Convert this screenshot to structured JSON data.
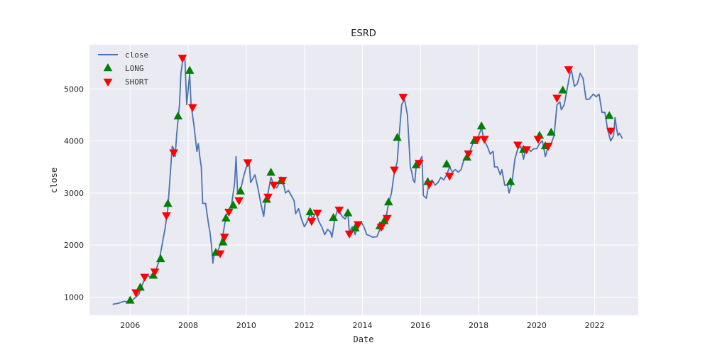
{
  "chart_data": {
    "type": "line",
    "title": "ESRD",
    "xlabel": "Date",
    "ylabel": "close",
    "xlim": [
      2004.6,
      2023.5
    ],
    "ylim": [
      650,
      5850
    ],
    "x_ticks": [
      2006,
      2008,
      2010,
      2012,
      2014,
      2016,
      2018,
      2020,
      2022
    ],
    "y_ticks": [
      1000,
      2000,
      3000,
      4000,
      5000
    ],
    "grid": true,
    "legend": {
      "position": "top-left",
      "entries": [
        {
          "label": "close",
          "kind": "line",
          "color": "#4c72b0"
        },
        {
          "label": "LONG",
          "kind": "triangle-up",
          "color": "#008000"
        },
        {
          "label": "SHORT",
          "kind": "triangle-down",
          "color": "#ff0000"
        }
      ]
    },
    "colors": {
      "close": "#4c72b0",
      "long": "#008000",
      "short": "#ff0000",
      "plot_bg": "#eaeaf2",
      "grid": "#ffffff"
    },
    "series": [
      {
        "name": "close",
        "points": [
          [
            2005.4,
            860
          ],
          [
            2005.6,
            880
          ],
          [
            2005.8,
            920
          ],
          [
            2006.0,
            900
          ],
          [
            2006.1,
            950
          ],
          [
            2006.3,
            1050
          ],
          [
            2006.4,
            1200
          ],
          [
            2006.5,
            1350
          ],
          [
            2006.6,
            1420
          ],
          [
            2006.7,
            1380
          ],
          [
            2006.85,
            1450
          ],
          [
            2007.0,
            1700
          ],
          [
            2007.1,
            2000
          ],
          [
            2007.2,
            2300
          ],
          [
            2007.3,
            2700
          ],
          [
            2007.4,
            3500
          ],
          [
            2007.45,
            3900
          ],
          [
            2007.5,
            3850
          ],
          [
            2007.55,
            3700
          ],
          [
            2007.6,
            4100
          ],
          [
            2007.65,
            4400
          ],
          [
            2007.7,
            4700
          ],
          [
            2007.75,
            5300
          ],
          [
            2007.8,
            5500
          ],
          [
            2007.88,
            5650
          ],
          [
            2007.95,
            4700
          ],
          [
            2008.0,
            5000
          ],
          [
            2008.05,
            5300
          ],
          [
            2008.1,
            4700
          ],
          [
            2008.2,
            4300
          ],
          [
            2008.3,
            3800
          ],
          [
            2008.35,
            3950
          ],
          [
            2008.4,
            3700
          ],
          [
            2008.45,
            3500
          ],
          [
            2008.5,
            2800
          ],
          [
            2008.6,
            2800
          ],
          [
            2008.7,
            2400
          ],
          [
            2008.75,
            2250
          ],
          [
            2008.8,
            2000
          ],
          [
            2008.85,
            1650
          ],
          [
            2008.9,
            1850
          ],
          [
            2009.0,
            1850
          ],
          [
            2009.1,
            2000
          ],
          [
            2009.2,
            2200
          ],
          [
            2009.3,
            2550
          ],
          [
            2009.4,
            2650
          ],
          [
            2009.5,
            2800
          ],
          [
            2009.6,
            3200
          ],
          [
            2009.65,
            3700
          ],
          [
            2009.7,
            3000
          ],
          [
            2009.8,
            3050
          ],
          [
            2009.9,
            3300
          ],
          [
            2010.0,
            3500
          ],
          [
            2010.1,
            3600
          ],
          [
            2010.15,
            3200
          ],
          [
            2010.3,
            3350
          ],
          [
            2010.4,
            3100
          ],
          [
            2010.5,
            2800
          ],
          [
            2010.6,
            2550
          ],
          [
            2010.65,
            2800
          ],
          [
            2010.75,
            3000
          ],
          [
            2010.85,
            3300
          ],
          [
            2010.95,
            3150
          ],
          [
            2011.05,
            3100
          ],
          [
            2011.15,
            3200
          ],
          [
            2011.25,
            3250
          ],
          [
            2011.35,
            3000
          ],
          [
            2011.45,
            3050
          ],
          [
            2011.55,
            2950
          ],
          [
            2011.65,
            2850
          ],
          [
            2011.7,
            2600
          ],
          [
            2011.8,
            2700
          ],
          [
            2011.9,
            2500
          ],
          [
            2012.0,
            2350
          ],
          [
            2012.1,
            2450
          ],
          [
            2012.2,
            2600
          ],
          [
            2012.3,
            2500
          ],
          [
            2012.4,
            2650
          ],
          [
            2012.5,
            2450
          ],
          [
            2012.6,
            2350
          ],
          [
            2012.7,
            2200
          ],
          [
            2012.8,
            2300
          ],
          [
            2012.9,
            2250
          ],
          [
            2012.95,
            2150
          ],
          [
            2013.05,
            2500
          ],
          [
            2013.15,
            2700
          ],
          [
            2013.3,
            2550
          ],
          [
            2013.4,
            2500
          ],
          [
            2013.5,
            2600
          ],
          [
            2013.55,
            2250
          ],
          [
            2013.65,
            2350
          ],
          [
            2013.75,
            2200
          ],
          [
            2013.85,
            2400
          ],
          [
            2013.95,
            2450
          ],
          [
            2014.05,
            2350
          ],
          [
            2014.15,
            2200
          ],
          [
            2014.25,
            2180
          ],
          [
            2014.35,
            2150
          ],
          [
            2014.5,
            2160
          ],
          [
            2014.6,
            2300
          ],
          [
            2014.7,
            2400
          ],
          [
            2014.8,
            2500
          ],
          [
            2014.9,
            2800
          ],
          [
            2015.0,
            3000
          ],
          [
            2015.1,
            3400
          ],
          [
            2015.2,
            3600
          ],
          [
            2015.25,
            4000
          ],
          [
            2015.35,
            4700
          ],
          [
            2015.45,
            4800
          ],
          [
            2015.55,
            4500
          ],
          [
            2015.6,
            4000
          ],
          [
            2015.65,
            3500
          ],
          [
            2015.7,
            3400
          ],
          [
            2015.75,
            3250
          ],
          [
            2015.8,
            3200
          ],
          [
            2015.85,
            3500
          ],
          [
            2015.95,
            3600
          ],
          [
            2016.05,
            3700
          ],
          [
            2016.1,
            2950
          ],
          [
            2016.2,
            2900
          ],
          [
            2016.3,
            3200
          ],
          [
            2016.4,
            3250
          ],
          [
            2016.5,
            3150
          ],
          [
            2016.6,
            3200
          ],
          [
            2016.7,
            3300
          ],
          [
            2016.8,
            3250
          ],
          [
            2016.9,
            3350
          ],
          [
            2017.0,
            3500
          ],
          [
            2017.1,
            3400
          ],
          [
            2017.2,
            3450
          ],
          [
            2017.3,
            3400
          ],
          [
            2017.4,
            3450
          ],
          [
            2017.5,
            3650
          ],
          [
            2017.6,
            3700
          ],
          [
            2017.7,
            3800
          ],
          [
            2017.8,
            3950
          ],
          [
            2017.9,
            4000
          ],
          [
            2018.0,
            4100
          ],
          [
            2018.1,
            4250
          ],
          [
            2018.2,
            4000
          ],
          [
            2018.3,
            3900
          ],
          [
            2018.4,
            3750
          ],
          [
            2018.5,
            3800
          ],
          [
            2018.55,
            3500
          ],
          [
            2018.65,
            3500
          ],
          [
            2018.75,
            3350
          ],
          [
            2018.8,
            3450
          ],
          [
            2018.9,
            3150
          ],
          [
            2019.0,
            3150
          ],
          [
            2019.05,
            3000
          ],
          [
            2019.15,
            3200
          ],
          [
            2019.25,
            3650
          ],
          [
            2019.35,
            3850
          ],
          [
            2019.45,
            3900
          ],
          [
            2019.55,
            3650
          ],
          [
            2019.6,
            3800
          ],
          [
            2019.7,
            3850
          ],
          [
            2019.8,
            3800
          ],
          [
            2019.9,
            3850
          ],
          [
            2020.0,
            3850
          ],
          [
            2020.1,
            3950
          ],
          [
            2020.2,
            4000
          ],
          [
            2020.3,
            3700
          ],
          [
            2020.4,
            3900
          ],
          [
            2020.5,
            3950
          ],
          [
            2020.6,
            4100
          ],
          [
            2020.7,
            4700
          ],
          [
            2020.8,
            4750
          ],
          [
            2020.85,
            4600
          ],
          [
            2020.95,
            4700
          ],
          [
            2021.05,
            5000
          ],
          [
            2021.15,
            5300
          ],
          [
            2021.2,
            5350
          ],
          [
            2021.3,
            5050
          ],
          [
            2021.4,
            5100
          ],
          [
            2021.5,
            5300
          ],
          [
            2021.6,
            5200
          ],
          [
            2021.7,
            4800
          ],
          [
            2021.8,
            4800
          ],
          [
            2021.95,
            4900
          ],
          [
            2022.05,
            4850
          ],
          [
            2022.15,
            4900
          ],
          [
            2022.25,
            4550
          ],
          [
            2022.35,
            4550
          ],
          [
            2022.45,
            4200
          ],
          [
            2022.55,
            4000
          ],
          [
            2022.65,
            4100
          ],
          [
            2022.7,
            4450
          ],
          [
            2022.75,
            4250
          ],
          [
            2022.8,
            4100
          ],
          [
            2022.85,
            4150
          ],
          [
            2022.95,
            4050
          ]
        ]
      },
      {
        "name": "LONG",
        "points": [
          [
            2006.0,
            930
          ],
          [
            2006.35,
            1180
          ],
          [
            2006.8,
            1410
          ],
          [
            2007.05,
            1730
          ],
          [
            2007.3,
            2790
          ],
          [
            2007.65,
            4470
          ],
          [
            2008.05,
            5350
          ],
          [
            2008.95,
            1850
          ],
          [
            2009.2,
            2050
          ],
          [
            2009.3,
            2510
          ],
          [
            2009.55,
            2760
          ],
          [
            2009.8,
            3030
          ],
          [
            2010.7,
            2870
          ],
          [
            2010.85,
            3390
          ],
          [
            2011.2,
            3230
          ],
          [
            2012.2,
            2630
          ],
          [
            2013.0,
            2520
          ],
          [
            2013.5,
            2610
          ],
          [
            2013.75,
            2320
          ],
          [
            2014.6,
            2360
          ],
          [
            2014.75,
            2460
          ],
          [
            2014.9,
            2820
          ],
          [
            2015.2,
            4060
          ],
          [
            2015.85,
            3530
          ],
          [
            2016.25,
            3210
          ],
          [
            2016.9,
            3550
          ],
          [
            2017.6,
            3680
          ],
          [
            2017.85,
            4000
          ],
          [
            2018.1,
            4280
          ],
          [
            2019.1,
            3210
          ],
          [
            2019.55,
            3830
          ],
          [
            2020.1,
            4100
          ],
          [
            2020.3,
            3900
          ],
          [
            2020.5,
            4160
          ],
          [
            2020.9,
            4970
          ],
          [
            2022.5,
            4480
          ]
        ]
      },
      {
        "name": "SHORT",
        "points": [
          [
            2006.2,
            1090
          ],
          [
            2006.5,
            1390
          ],
          [
            2006.85,
            1490
          ],
          [
            2007.25,
            2570
          ],
          [
            2007.5,
            3780
          ],
          [
            2007.8,
            5600
          ],
          [
            2008.15,
            4650
          ],
          [
            2009.1,
            1840
          ],
          [
            2009.25,
            2160
          ],
          [
            2009.4,
            2640
          ],
          [
            2009.75,
            2860
          ],
          [
            2010.05,
            3590
          ],
          [
            2010.75,
            2930
          ],
          [
            2010.95,
            3160
          ],
          [
            2011.25,
            3250
          ],
          [
            2012.25,
            2460
          ],
          [
            2012.45,
            2620
          ],
          [
            2013.2,
            2680
          ],
          [
            2013.55,
            2220
          ],
          [
            2013.85,
            2400
          ],
          [
            2014.65,
            2350
          ],
          [
            2014.85,
            2520
          ],
          [
            2015.1,
            3450
          ],
          [
            2015.4,
            4850
          ],
          [
            2015.95,
            3580
          ],
          [
            2016.3,
            3170
          ],
          [
            2017.0,
            3330
          ],
          [
            2017.65,
            3760
          ],
          [
            2017.95,
            4030
          ],
          [
            2018.2,
            4040
          ],
          [
            2019.35,
            3930
          ],
          [
            2019.65,
            3840
          ],
          [
            2020.05,
            4040
          ],
          [
            2020.4,
            3910
          ],
          [
            2020.7,
            4830
          ],
          [
            2021.1,
            5380
          ],
          [
            2022.55,
            4200
          ]
        ]
      }
    ]
  }
}
